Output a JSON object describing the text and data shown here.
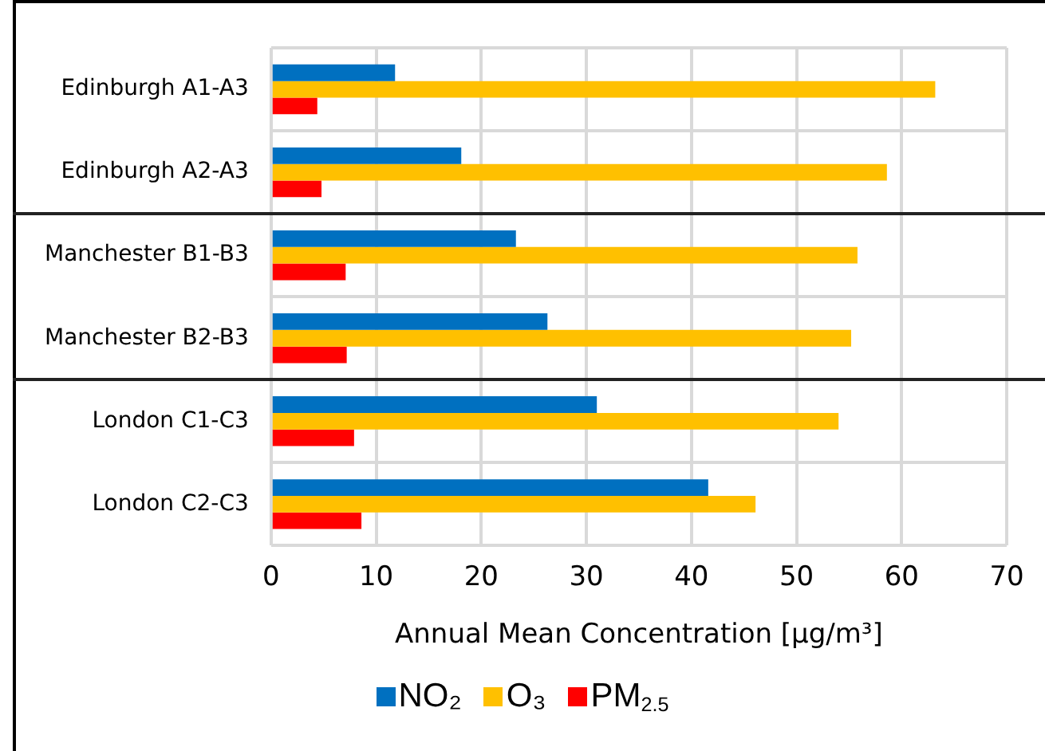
{
  "chart_data": {
    "type": "bar",
    "orientation": "horizontal",
    "xlabel": "Annual Mean Concentration [µg/m³]",
    "categories": [
      "Edinburgh A1-A3",
      "Edinburgh A2-A3",
      "Manchester B1-B3",
      "Manchester B2-B3",
      "London C1-C3",
      "London C2-C3"
    ],
    "series": [
      {
        "name": "NO₂",
        "color": "#0070c0",
        "values": [
          11.8,
          18.1,
          23.3,
          26.3,
          31.0,
          41.6
        ]
      },
      {
        "name": "O₃",
        "color": "#ffc000",
        "values": [
          63.2,
          58.6,
          55.8,
          55.2,
          54.0,
          46.1
        ]
      },
      {
        "name": "PM$_{2.5}$",
        "color": "#ff0000",
        "values": [
          4.4,
          4.8,
          7.1,
          7.2,
          7.9,
          8.6
        ]
      }
    ],
    "xlim": [
      0,
      70
    ],
    "xticks": [
      0,
      10,
      20,
      30,
      40,
      50,
      60,
      70
    ],
    "grid": true,
    "legend": "bottom"
  }
}
